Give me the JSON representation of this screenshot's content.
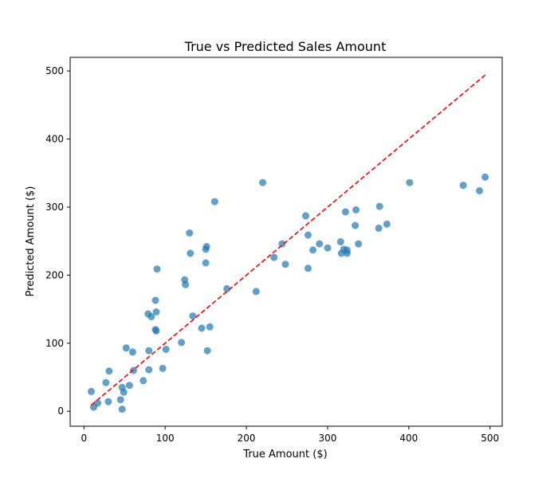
{
  "chart_data": {
    "type": "scatter",
    "title": "True vs Predicted Sales Amount",
    "xlabel": "True Amount ($)",
    "ylabel": "Predicted Amount ($)",
    "xlim": [
      -17,
      515
    ],
    "ylim": [
      -22,
      520
    ],
    "xticks": [
      0,
      100,
      200,
      300,
      400,
      500
    ],
    "yticks": [
      0,
      100,
      200,
      300,
      400,
      500
    ],
    "xtick_labels": [
      "0",
      "100",
      "200",
      "300",
      "400",
      "500"
    ],
    "ytick_labels": [
      "0",
      "100",
      "200",
      "300",
      "400",
      "500"
    ],
    "grid": false,
    "series": [
      {
        "point_color": "#1f77b4",
        "point_opacity": 0.7,
        "points": [
          [
            9,
            29
          ],
          [
            12,
            6
          ],
          [
            17,
            12
          ],
          [
            27,
            42
          ],
          [
            30,
            14
          ],
          [
            31,
            59
          ],
          [
            45,
            17
          ],
          [
            47,
            3
          ],
          [
            47,
            35
          ],
          [
            49,
            28
          ],
          [
            52,
            93
          ],
          [
            56,
            38
          ],
          [
            60,
            87
          ],
          [
            61,
            60
          ],
          [
            73,
            45
          ],
          [
            79,
            143
          ],
          [
            80,
            61
          ],
          [
            80,
            89
          ],
          [
            83,
            139
          ],
          [
            88,
            163
          ],
          [
            88,
            120
          ],
          [
            89,
            146
          ],
          [
            89,
            118
          ],
          [
            90,
            209
          ],
          [
            97,
            63
          ],
          [
            101,
            91
          ],
          [
            120,
            101
          ],
          [
            124,
            193
          ],
          [
            125,
            186
          ],
          [
            130,
            262
          ],
          [
            131,
            232
          ],
          [
            134,
            140
          ],
          [
            145,
            122
          ],
          [
            150,
            218
          ],
          [
            150,
            238
          ],
          [
            151,
            242
          ],
          [
            152,
            89
          ],
          [
            155,
            124
          ],
          [
            161,
            308
          ],
          [
            176,
            180
          ],
          [
            212,
            176
          ],
          [
            220,
            336
          ],
          [
            234,
            226
          ],
          [
            244,
            246
          ],
          [
            248,
            216
          ],
          [
            273,
            287
          ],
          [
            276,
            259
          ],
          [
            276,
            210
          ],
          [
            282,
            237
          ],
          [
            290,
            246
          ],
          [
            300,
            240
          ],
          [
            316,
            249
          ],
          [
            317,
            232
          ],
          [
            320,
            238
          ],
          [
            322,
            293
          ],
          [
            324,
            232
          ],
          [
            324,
            237
          ],
          [
            334,
            273
          ],
          [
            335,
            296
          ],
          [
            338,
            246
          ],
          [
            363,
            269
          ],
          [
            364,
            301
          ],
          [
            373,
            275
          ],
          [
            401,
            336
          ],
          [
            467,
            332
          ],
          [
            487,
            324
          ],
          [
            494,
            344
          ]
        ]
      }
    ],
    "reference_line": {
      "from": [
        9,
        9
      ],
      "to": [
        494,
        494
      ],
      "color": "#ff0000",
      "style": "dashed"
    }
  }
}
